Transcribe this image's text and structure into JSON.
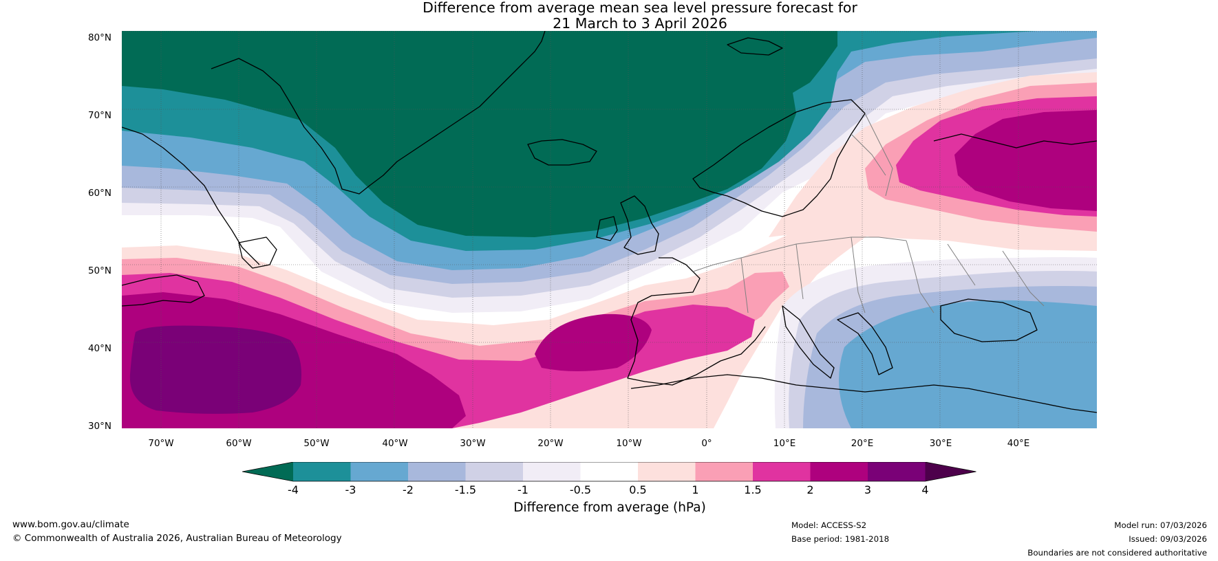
{
  "title_line1": "Difference from average mean sea level pressure forecast for",
  "title_line2": "21 March to 3 April 2026",
  "lat_labels": [
    "80°N",
    "70°N",
    "60°N",
    "50°N",
    "40°N",
    "30°N"
  ],
  "lon_labels": [
    "70°W",
    "60°W",
    "50°W",
    "40°W",
    "30°W",
    "20°W",
    "10°W",
    "0°",
    "10°E",
    "20°E",
    "30°E",
    "40°E"
  ],
  "colorbar": {
    "title": "Difference from average (hPa)",
    "ticks": [
      "-4",
      "-3",
      "-2",
      "-1.5",
      "-1",
      "-0.5",
      "0.5",
      "1",
      "1.5",
      "2",
      "3",
      "4"
    ],
    "colors": [
      "#016b55",
      "#1d9099",
      "#66a8d1",
      "#a8b8dc",
      "#d0d1e6",
      "#f1edf6",
      "#ffffff",
      "#fde0dd",
      "#fa9fb5",
      "#e033a0",
      "#ae017e",
      "#7a0177",
      "#4d004b"
    ]
  },
  "footer": {
    "website": "www.bom.gov.au/climate",
    "copyright": "© Commonwealth of Australia 2026, Australian Bureau of Meteorology",
    "model": "Model: ACCESS-S2",
    "base_period": "Base period: 1981-2018",
    "model_run": "Model run: 07/03/2026",
    "issued": "Issued: 09/03/2026",
    "boundaries": "Boundaries are not considered authoritative"
  }
}
